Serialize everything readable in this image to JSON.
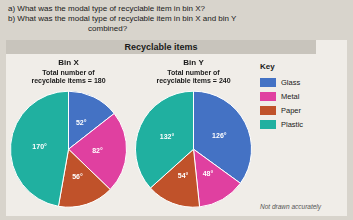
{
  "title": "Recyclable items",
  "annotations": [
    "a) What was the modal type of recyclable item in bin X?",
    "b) What was the modal type of recyclable item in bin X and bin Y\n                                    combined?",
    "Not drawn accurately"
  ],
  "legend": "right",
  "legend_title": "Key",
  "chart_data": [
    {
      "type": "pie",
      "title": "Bin X",
      "subtitle": "Total number of\nrecyclable items = 180",
      "categories": [
        "Glass",
        "Metal",
        "Paper",
        "Plastic"
      ],
      "values": [
        52,
        82,
        56,
        170
      ],
      "value_labels": [
        "52°",
        "82°",
        "56°",
        "170°"
      ],
      "colors": [
        "#4472c4",
        "#e040a0",
        "#c0522a",
        "#20b0a0"
      ],
      "data_labels": true
    },
    {
      "type": "pie",
      "title": "Bin Y",
      "subtitle": "Total number of\nrecyclable items = 240",
      "categories": [
        "Glass",
        "Metal",
        "Paper",
        "Plastic"
      ],
      "values": [
        126,
        48,
        54,
        132
      ],
      "value_labels": [
        "126°",
        "48°",
        "54°",
        "132°"
      ],
      "colors": [
        "#4472c4",
        "#e040a0",
        "#c0522a",
        "#20b0a0"
      ],
      "data_labels": true
    }
  ]
}
